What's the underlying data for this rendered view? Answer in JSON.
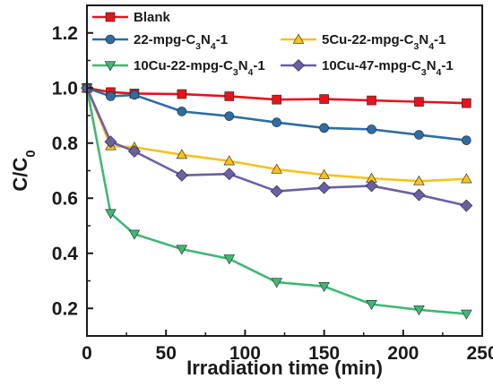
{
  "chart_data": {
    "type": "line",
    "xlabel": "Irradiation time (min)",
    "ylabel": {
      "main": "C/C",
      "sub": "0"
    },
    "xlim": [
      0,
      250
    ],
    "ylim": [
      0.1,
      1.3
    ],
    "xticks": [
      0,
      50,
      100,
      150,
      200,
      250
    ],
    "yticks": [
      0.2,
      0.4,
      0.6,
      0.8,
      1.0,
      1.2
    ],
    "ytick_labels": [
      "0.2",
      "0.4",
      "0.6",
      "0.8",
      "1.0",
      "1.2"
    ],
    "grid": false,
    "legend_position": "top-inside",
    "series": [
      {
        "name": "Blank",
        "label_parts": [
          [
            "Blank",
            ""
          ]
        ],
        "color": "#e8121c",
        "marker": "square",
        "x": [
          0,
          15,
          30,
          60,
          90,
          120,
          150,
          180,
          210,
          240
        ],
        "y": [
          1.0,
          0.985,
          0.98,
          0.978,
          0.97,
          0.958,
          0.96,
          0.955,
          0.95,
          0.945
        ]
      },
      {
        "name": "22-mpg-C3N4-1",
        "label_parts": [
          [
            "22-mpg-C",
            ""
          ],
          [
            "3",
            "sub"
          ],
          [
            "N",
            ""
          ],
          [
            "4",
            "sub"
          ],
          [
            "-1",
            ""
          ]
        ],
        "color": "#2e6da4",
        "marker": "circle",
        "x": [
          0,
          15,
          30,
          60,
          90,
          120,
          150,
          180,
          210,
          240
        ],
        "y": [
          1.0,
          0.97,
          0.975,
          0.915,
          0.898,
          0.875,
          0.855,
          0.85,
          0.83,
          0.81
        ]
      },
      {
        "name": "5Cu-22-mpg-C3N4-1",
        "label_parts": [
          [
            "5Cu-22-mpg-C",
            ""
          ],
          [
            "3",
            "sub"
          ],
          [
            "N",
            ""
          ],
          [
            "4",
            "sub"
          ],
          [
            "-1",
            ""
          ]
        ],
        "color": "#f7c11e",
        "marker": "triangle",
        "x": [
          0,
          15,
          30,
          60,
          90,
          120,
          150,
          180,
          210,
          240
        ],
        "y": [
          1.0,
          0.79,
          0.785,
          0.758,
          0.735,
          0.705,
          0.685,
          0.672,
          0.662,
          0.67
        ]
      },
      {
        "name": "10Cu-22-mpg-C3N4-1",
        "label_parts": [
          [
            "10Cu-22-mpg-C",
            ""
          ],
          [
            "3",
            "sub"
          ],
          [
            "N",
            ""
          ],
          [
            "4",
            "sub"
          ],
          [
            "-1",
            ""
          ]
        ],
        "color": "#40b874",
        "marker": "triangle-down",
        "x": [
          0,
          15,
          30,
          60,
          90,
          120,
          150,
          180,
          210,
          240
        ],
        "y": [
          1.0,
          0.545,
          0.47,
          0.415,
          0.38,
          0.295,
          0.28,
          0.215,
          0.195,
          0.18
        ]
      },
      {
        "name": "10Cu-47-mpg-C3N4-1",
        "label_parts": [
          [
            "10Cu-47-mpg-C",
            ""
          ],
          [
            "3",
            "sub"
          ],
          [
            "N",
            ""
          ],
          [
            "4",
            "sub"
          ],
          [
            "-1",
            ""
          ]
        ],
        "color": "#6b5fa6",
        "marker": "diamond",
        "x": [
          0,
          15,
          30,
          60,
          90,
          120,
          150,
          180,
          210,
          240
        ],
        "y": [
          1.0,
          0.805,
          0.77,
          0.683,
          0.688,
          0.625,
          0.638,
          0.645,
          0.612,
          0.573
        ]
      }
    ]
  }
}
